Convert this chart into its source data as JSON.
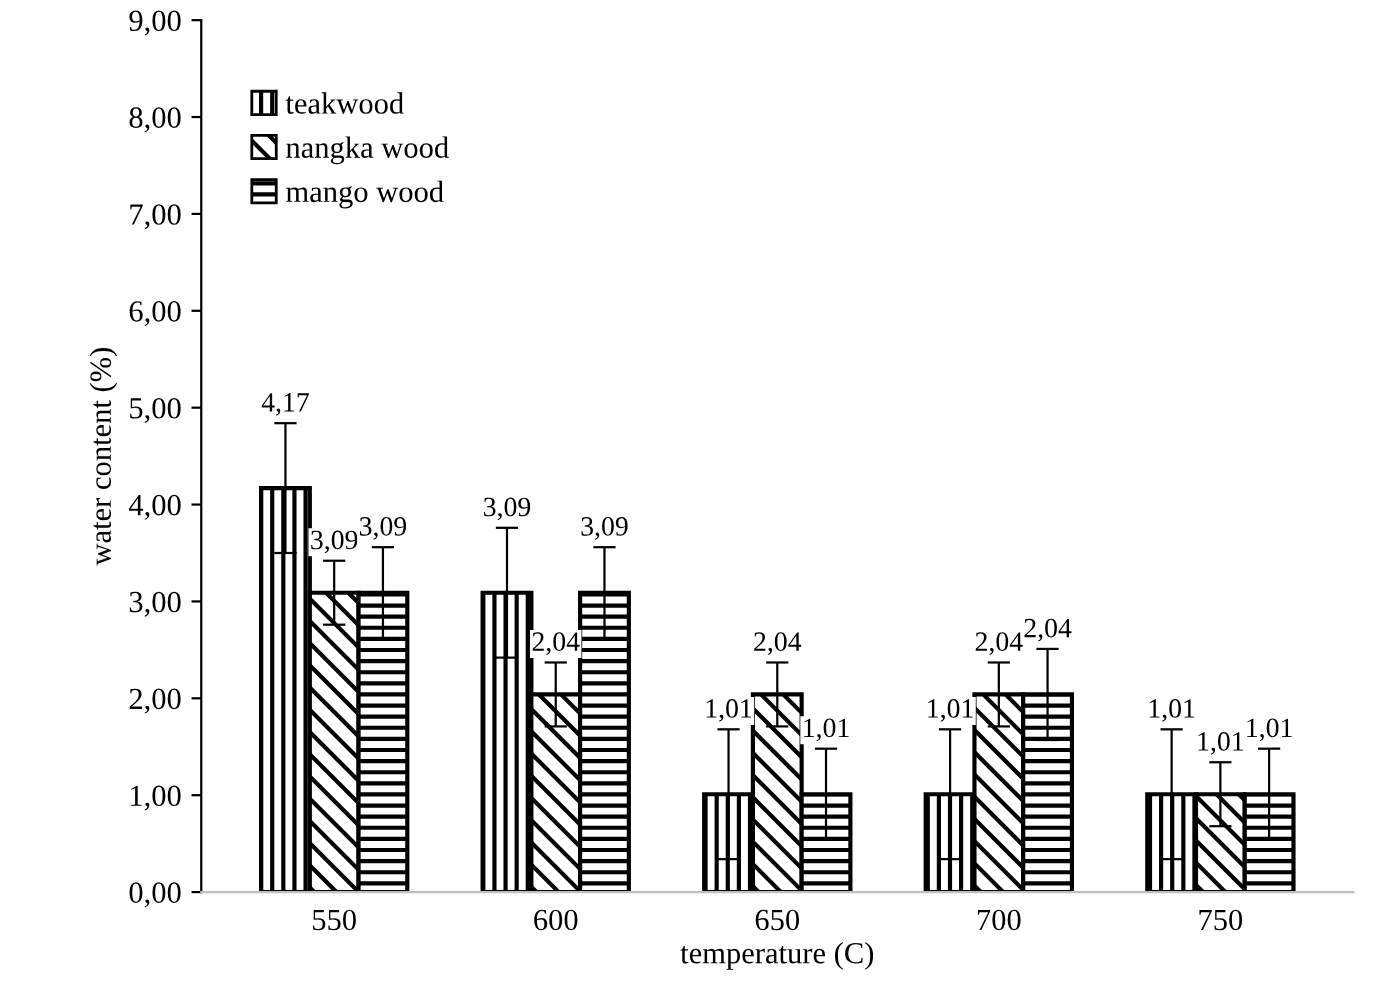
{
  "chart_data": {
    "type": "bar",
    "xlabel": "temperature (C)",
    "ylabel": "water content (%)",
    "categories": [
      "550",
      "600",
      "650",
      "700",
      "750"
    ],
    "series": [
      {
        "name": "teakwood",
        "color": "#000000",
        "values": [
          4.17,
          3.09,
          1.01,
          1.01,
          1.01
        ],
        "errors": [
          0.67,
          0.67,
          0.67,
          0.67,
          0.67
        ],
        "value_labels": [
          "4,17",
          "3,09",
          "1,01",
          "1,01",
          "1,01"
        ]
      },
      {
        "name": "nangka wood",
        "color": "#000000",
        "values": [
          3.09,
          2.04,
          2.04,
          2.04,
          1.01
        ],
        "errors": [
          0.33,
          0.33,
          0.33,
          0.33,
          0.33
        ],
        "value_labels": [
          "3,09",
          "2,04",
          "2,04",
          "2,04",
          "1,01"
        ]
      },
      {
        "name": "mango wood",
        "color": "#000000",
        "values": [
          3.09,
          3.09,
          1.01,
          2.04,
          1.01
        ],
        "errors": [
          0.47,
          0.47,
          0.47,
          0.47,
          0.47
        ],
        "value_labels": [
          "3,09",
          "3,09",
          "1,01",
          "2,04",
          "1,01"
        ]
      }
    ],
    "ylim": [
      0,
      9
    ],
    "yticks": [
      {
        "value": 0,
        "label": "0,00"
      },
      {
        "value": 1,
        "label": "1,00"
      },
      {
        "value": 2,
        "label": "2,00"
      },
      {
        "value": 3,
        "label": "3,00"
      },
      {
        "value": 4,
        "label": "4,00"
      },
      {
        "value": 5,
        "label": "5,00"
      },
      {
        "value": 6,
        "label": "6,00"
      },
      {
        "value": 7,
        "label": "7,00"
      },
      {
        "value": 8,
        "label": "8,00"
      },
      {
        "value": 9,
        "label": "9,00"
      }
    ],
    "grid": false,
    "legend": "top left"
  }
}
